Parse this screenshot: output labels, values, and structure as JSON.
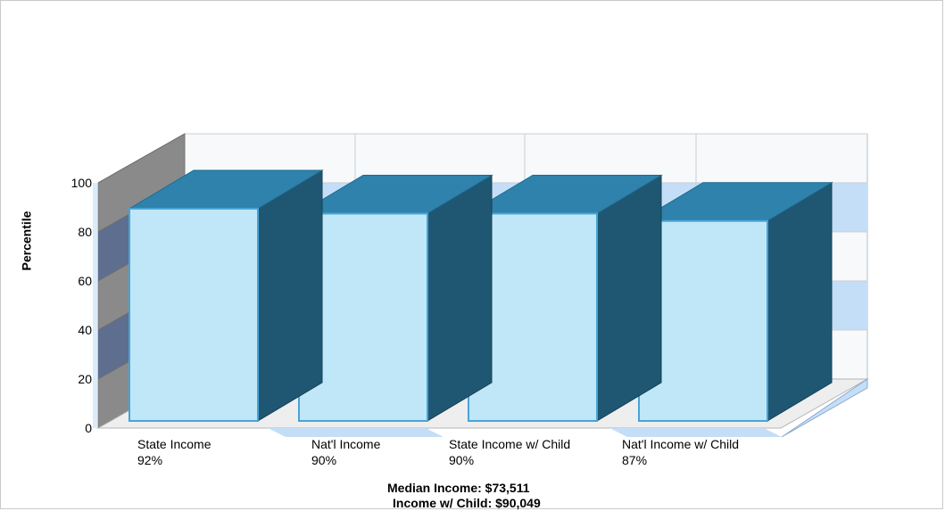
{
  "chart_data": {
    "type": "bar",
    "ylabel": "Percentile",
    "ylim": [
      0,
      100
    ],
    "yticks": [
      "0",
      "20",
      "40",
      "60",
      "80",
      "100"
    ],
    "categories": [
      "State Income",
      "Nat'l Income",
      "State Income w/ Child",
      "Nat'l Income w/ Child"
    ],
    "values": [
      92,
      90,
      90,
      87
    ],
    "value_labels": [
      "92%",
      "90%",
      "90%",
      "87%"
    ],
    "footer": [
      "Median Income: $73,511",
      "Income w/ Child: $90,049"
    ],
    "colors": {
      "bar_front": "#bfe7f7",
      "bar_top": "#2e82ab",
      "bar_side": "#1f5773",
      "bar_outline": "#4aa3d6",
      "band": "#c5def7",
      "left_wall": "#8a8a8a",
      "left_wall_band": "#5e6e8f",
      "floor_stripe": "#c5def7"
    }
  }
}
